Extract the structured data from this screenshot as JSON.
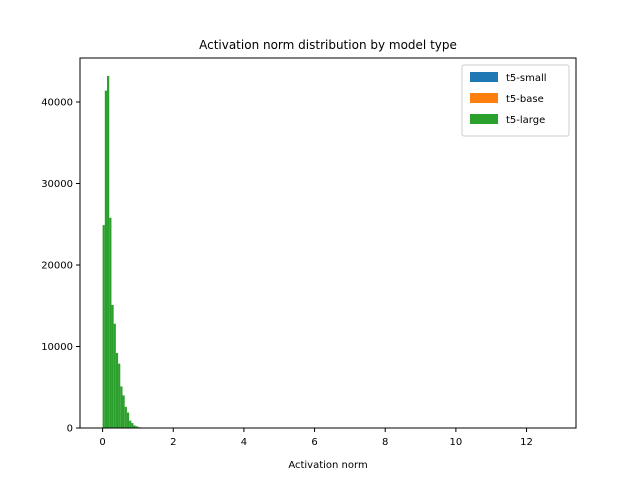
{
  "chart_data": {
    "type": "bar",
    "subtype": "histogram",
    "title": "Activation norm distribution by model type",
    "xlabel": "Activation norm",
    "ylabel": "",
    "xlim": [
      -0.64,
      13.4
    ],
    "ylim": [
      0,
      45400
    ],
    "xticks": [
      0,
      2,
      4,
      6,
      8,
      10,
      12
    ],
    "yticks": [
      0,
      10000,
      20000,
      30000,
      40000
    ],
    "grid": false,
    "legend_position": "top-right",
    "bin_width": 0.0625,
    "bin_start": 0,
    "series": [
      {
        "name": "t5-small",
        "color": "#1f77b4",
        "counts": []
      },
      {
        "name": "t5-base",
        "color": "#ff7f0e",
        "counts": []
      },
      {
        "name": "t5-large",
        "color": "#2ca02c",
        "counts": [
          24900,
          41400,
          43200,
          25800,
          15100,
          12800,
          9200,
          7900,
          5100,
          4000,
          2600,
          1900,
          900,
          600,
          300,
          200,
          100,
          50,
          20
        ]
      }
    ]
  }
}
